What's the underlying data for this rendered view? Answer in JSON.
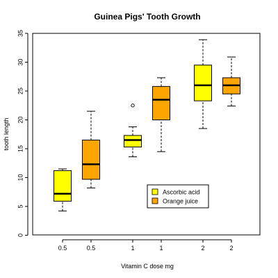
{
  "chart_data": {
    "type": "boxplot",
    "title": "Guinea Pigs' Tooth Growth",
    "xlabel": "Vitamin C dose mg",
    "ylabel": "tooth length",
    "ylim": [
      0,
      35
    ],
    "yticks": [
      0,
      5,
      10,
      15,
      20,
      25,
      30,
      35
    ],
    "grid": false,
    "legend_position": "inside-bottom-right",
    "legend": [
      {
        "label": "Ascorbic acid",
        "color": "#ffff00"
      },
      {
        "label": "Orange juice",
        "color": "#ffa500"
      }
    ],
    "boxes": [
      {
        "x_label": "0.5",
        "series": "Ascorbic acid",
        "color": "#ffff00",
        "min": 4.2,
        "q1": 5.9,
        "median": 7.2,
        "q3": 11.2,
        "max": 11.5,
        "outliers": []
      },
      {
        "x_label": "0.5",
        "series": "Orange juice",
        "color": "#ffa500",
        "min": 8.2,
        "q1": 9.7,
        "median": 12.3,
        "q3": 16.5,
        "max": 21.5,
        "outliers": []
      },
      {
        "x_label": "1",
        "series": "Ascorbic acid",
        "color": "#ffff00",
        "min": 13.6,
        "q1": 15.3,
        "median": 16.5,
        "q3": 17.3,
        "max": 18.8,
        "outliers": [
          22.5
        ]
      },
      {
        "x_label": "1",
        "series": "Orange juice",
        "color": "#ffa500",
        "min": 14.5,
        "q1": 20.0,
        "median": 23.5,
        "q3": 25.8,
        "max": 27.3,
        "outliers": []
      },
      {
        "x_label": "2",
        "series": "Ascorbic acid",
        "color": "#ffff00",
        "min": 18.5,
        "q1": 23.3,
        "median": 26.0,
        "q3": 29.5,
        "max": 33.9,
        "outliers": []
      },
      {
        "x_label": "2",
        "series": "Orange juice",
        "color": "#ffa500",
        "min": 22.4,
        "q1": 24.5,
        "median": 26.0,
        "q3": 27.3,
        "max": 30.9,
        "outliers": []
      }
    ]
  }
}
